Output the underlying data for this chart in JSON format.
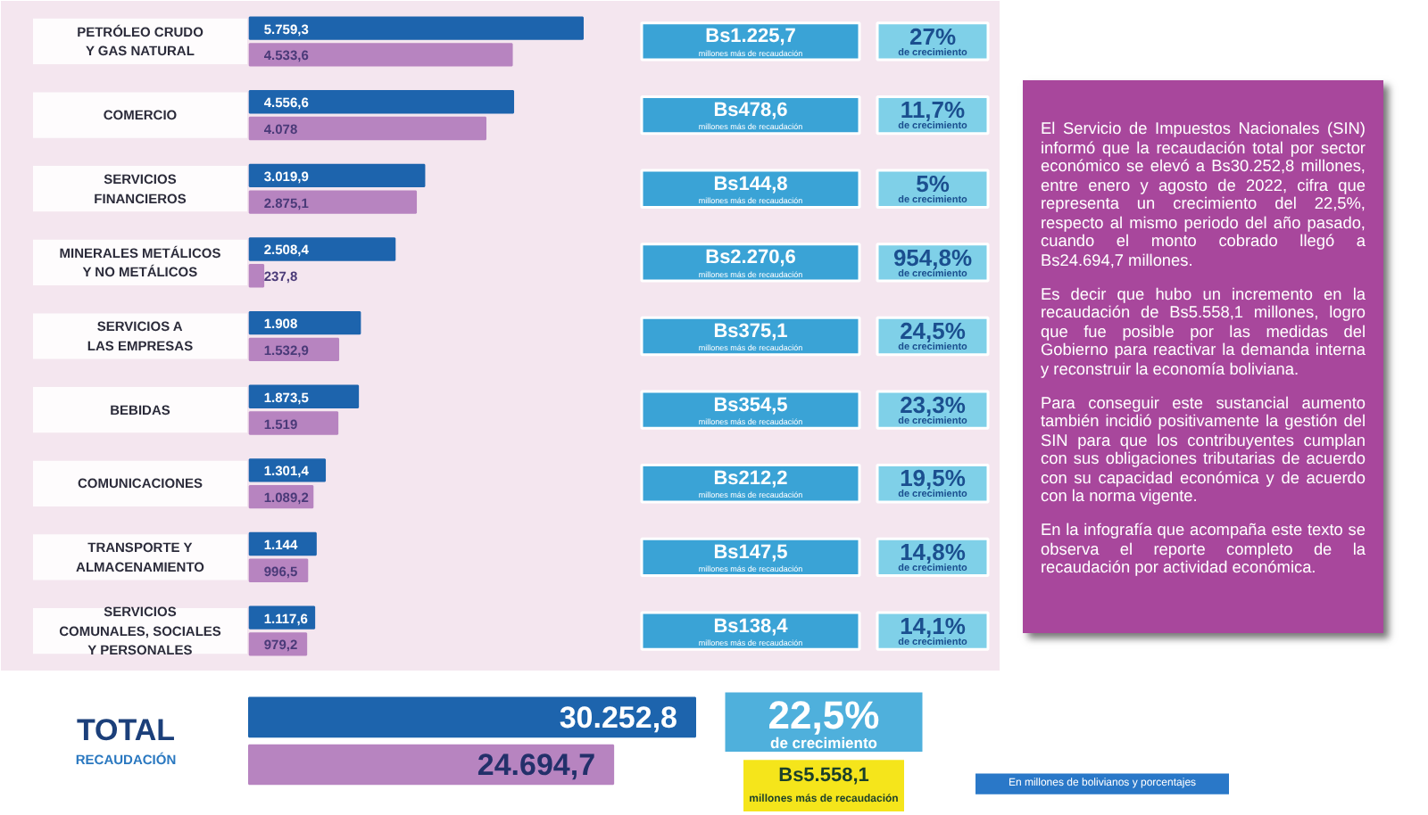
{
  "chart_data": [
    {
      "type": "bar",
      "orientation": "horizontal",
      "grid": false,
      "tick_labels": false,
      "categories": [
        "PETRÓLEO CRUDO\nY GAS NATURAL",
        "COMERCIO",
        "SERVICIOS\nFINANCIEROS",
        "MINERALES METÁLICOS\nY NO METÁLICOS",
        "SERVICIOS A\nLAS EMPRESAS",
        "BEBIDAS",
        "COMUNICACIONES",
        "TRANSPORTE Y\nALMACENAMIENTO",
        "SERVICIOS\nCOMUNALES, SOCIALES\nY PERSONALES"
      ],
      "series": [
        {
          "color": "#1d64ad",
          "values": [
            5759.3,
            4556.6,
            3019.9,
            2508.4,
            1908,
            1873.5,
            1301.4,
            1144,
            1117.6
          ],
          "value_labels": [
            "5.759,3",
            "4.556,6",
            "3.019,9",
            "2.508,4",
            "1.908",
            "1.873,5",
            "1.301,4",
            "1.144",
            "1.117,6"
          ]
        },
        {
          "color": "#b784c0",
          "values": [
            4533.6,
            4078,
            2875.1,
            237.8,
            1532.9,
            1519,
            1089.2,
            996.5,
            979.2
          ],
          "value_labels": [
            "4.533,6",
            "4.078",
            "2.875,1",
            "237,8",
            "1.532,9",
            "1.519",
            "1.089,2",
            "996,5",
            "979,2"
          ]
        }
      ],
      "annotations": [
        "Bs1.225,7\nmillones más de recaudación",
        "27%\nde crecimiento",
        "Bs478,6\nmillones más de recaudación",
        "11,7%\nde crecimiento",
        "Bs144,8\nmillones más de recaudación",
        "5%\nde crecimiento",
        "Bs2.270,6\nmillones más de recaudación",
        "954,8%\nde crecimiento",
        "Bs375,1\nmillones más de recaudación",
        "24,5%\nde crecimiento",
        "Bs354,5\nmillones más de recaudación",
        "23,3%\nde crecimiento",
        "Bs212,2\nmillones más de recaudación",
        "19,5%\nde crecimiento",
        "Bs147,5\nmillones más de recaudación",
        "14,8%\nde crecimiento",
        "Bs138,4\nmillones más de recaudación",
        "14,1%\nde crecimiento"
      ]
    },
    {
      "type": "bar",
      "orientation": "horizontal",
      "grid": false,
      "tick_labels": false,
      "categories": [
        "TOTAL\nRECAUDACIÓN"
      ],
      "series": [
        {
          "color": "#1d64ad",
          "values": [
            30252.8
          ],
          "value_labels": [
            "30.252,8"
          ]
        },
        {
          "color": "#b784c0",
          "values": [
            24694.7
          ],
          "value_labels": [
            "24.694,7"
          ]
        }
      ],
      "annotations": [
        "22,5%\nde crecimiento",
        "Bs5.558,1\nmillones más de recaudación",
        "En millones de bolivianos y porcentajes"
      ]
    },
    {
      "type": "other",
      "annotations": [
        "El Servicio de Impuestos Nacionales (SIN) informó que la recaudación total por sector económico se elevó a Bs30.252,8 millones, entre enero y agosto de 2022, cifra que representa un crecimiento del 22,5%, respecto al mismo periodo del año pasado, cuando el monto cobrado llegó a Bs24.694,7 millones.",
        "Es decir que hubo un incremento en la recaudación de Bs5.558,1 millones, logro que fue posible por las medidas del Gobierno para reactivar la demanda interna y reconstruir la economía boliviana.",
        "Para conseguir este sustancial aumento también incidió positivamente la gestión del SIN para que los contribuyentes cumplan con sus obligaciones tributarias de acuerdo con su capacidad económica y de acuerdo con la norma vigente.",
        "En la infografía que acompaña este texto se observa el reporte completo de la recaudación por actividad económica."
      ]
    }
  ]
}
